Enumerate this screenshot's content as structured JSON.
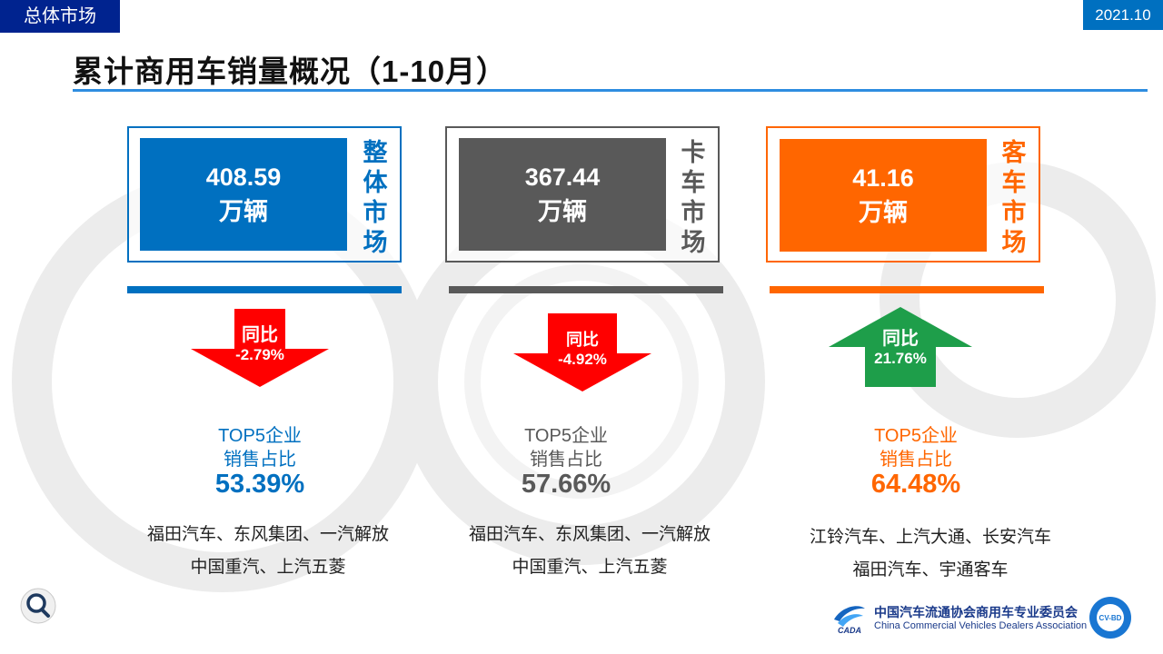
{
  "header": {
    "section_tag": "总体市场",
    "date": "2021.10",
    "title": "累计商用车销量概况（1-10月）"
  },
  "colors": {
    "overall": "#0070c0",
    "truck": "#595959",
    "bus": "#ff6600",
    "down_arrow": "#ff0000",
    "up_arrow": "#1e9e4a",
    "navy": "#00238f"
  },
  "panels": [
    {
      "key": "overall",
      "title_chars": [
        "整",
        "体",
        "市",
        "场"
      ],
      "value": "408.59",
      "unit": "万辆",
      "yoy_label": "同比",
      "yoy_value": "-2.79%",
      "trend": "down",
      "top5_label_line1": "TOP5企业",
      "top5_label_line2": "销售占比",
      "top5_value": "53.39%",
      "companies_line1": "福田汽车、东风集团、一汽解放",
      "companies_line2": "中国重汽、上汽五菱"
    },
    {
      "key": "truck",
      "title_chars": [
        "卡",
        "车",
        "市",
        "场"
      ],
      "value": "367.44",
      "unit": "万辆",
      "yoy_label": "同比",
      "yoy_value": "-4.92%",
      "trend": "down",
      "top5_label_line1": "TOP5企业",
      "top5_label_line2": "销售占比",
      "top5_value": "57.66%",
      "companies_line1": "福田汽车、东风集团、一汽解放",
      "companies_line2": "中国重汽、上汽五菱"
    },
    {
      "key": "bus",
      "title_chars": [
        "客",
        "车",
        "市",
        "场"
      ],
      "value": "41.16",
      "unit": "万辆",
      "yoy_label": "同比",
      "yoy_value": "21.76%",
      "trend": "up",
      "top5_label_line1": "TOP5企业",
      "top5_label_line2": "销售占比",
      "top5_value": "64.48%",
      "companies_line1": "江铃汽车、上汽大通、长安汽车",
      "companies_line2": "福田汽车、宇通客车"
    }
  ],
  "footer": {
    "association_cn": "中国汽车流通协会商用车专业委员会",
    "association_en": "China Commercial Vehicles Dealers Association",
    "logo_text": "CADA",
    "badge_text": "CV-BD"
  }
}
